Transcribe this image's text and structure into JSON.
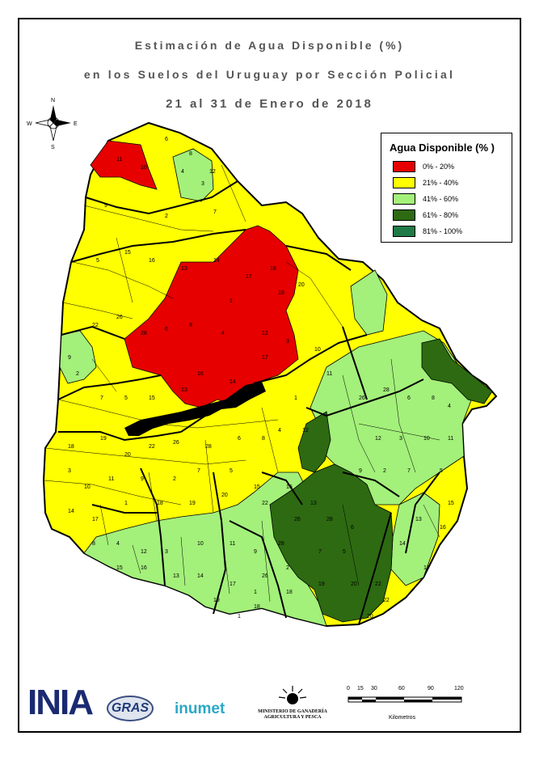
{
  "title": {
    "line1": "Estimación de Agua Disponible (%)",
    "line2": "en los Suelos del Uruguay por Sección Policial",
    "line3": "21 al 31 de Enero de 2018"
  },
  "compass": {
    "n": "N",
    "s": "S",
    "e": "E",
    "w": "W"
  },
  "legend": {
    "title": "Agua Disponible (% )",
    "items": [
      {
        "label": "0% - 20%",
        "color": "#e60000"
      },
      {
        "label": "21% - 40%",
        "color": "#ffff00"
      },
      {
        "label": "41% - 60%",
        "color": "#a3f07a"
      },
      {
        "label": "61% - 80%",
        "color": "#2d6a12"
      },
      {
        "label": "81% - 100%",
        "color": "#1e7a46"
      }
    ]
  },
  "scalebar": {
    "ticks": [
      "0",
      "15",
      "30",
      "60",
      "90",
      "120"
    ],
    "unit": "Kilometros"
  },
  "logos": {
    "inia": "INIA",
    "gras": "GRAS",
    "inumet": "inumet",
    "mgap_line1": "MINISTERIO DE GANADERÍA",
    "mgap_line2": "AGRICULTURA Y PESCA"
  },
  "section_labels": [
    "6",
    "8",
    "4",
    "12",
    "3",
    "10",
    "11",
    "9",
    "2",
    "7",
    "5",
    "15",
    "16",
    "13",
    "14",
    "17",
    "1",
    "18",
    "19",
    "20",
    "22",
    "26",
    "28"
  ]
}
